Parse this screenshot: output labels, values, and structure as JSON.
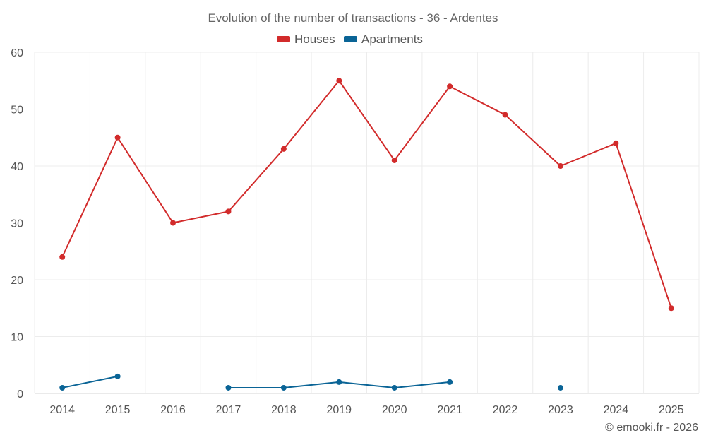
{
  "chart_data": {
    "type": "line",
    "title": "Evolution of the number of transactions - 36 - Ardentes",
    "categories": [
      "2014",
      "2015",
      "2016",
      "2017",
      "2018",
      "2019",
      "2020",
      "2021",
      "2022",
      "2023",
      "2024",
      "2025"
    ],
    "series": [
      {
        "name": "Houses",
        "color": "#d22b2b",
        "values": [
          24,
          45,
          30,
          32,
          43,
          55,
          41,
          54,
          49,
          40,
          44,
          15
        ]
      },
      {
        "name": "Apartments",
        "color": "#0a6496",
        "values": [
          1,
          3,
          null,
          1,
          1,
          2,
          1,
          2,
          null,
          1,
          null,
          null
        ]
      }
    ],
    "ylim": [
      0,
      60
    ],
    "yticks": [
      0,
      10,
      20,
      30,
      40,
      50,
      60
    ],
    "grid": true,
    "legend": "top-center"
  },
  "credit": "© emooki.fr - 2026"
}
